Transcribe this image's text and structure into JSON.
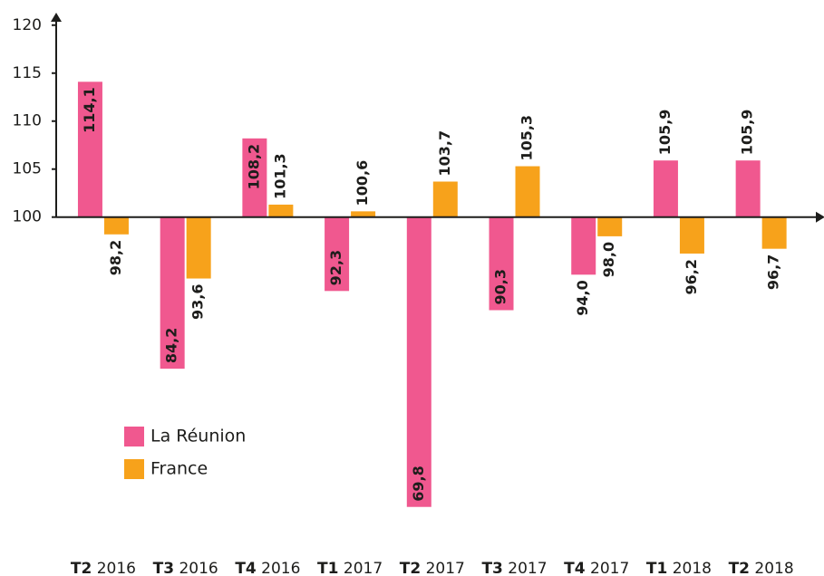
{
  "chart_data": {
    "type": "bar",
    "categories": [
      "T2 2016",
      "T3 2016",
      "T4 2016",
      "T1 2017",
      "T2 2017",
      "T3 2017",
      "T4 2017",
      "T1 2018",
      "T2 2018"
    ],
    "series": [
      {
        "name": "La Réunion",
        "color": "#f0588f",
        "values": [
          114.1,
          84.2,
          108.2,
          92.3,
          69.8,
          90.3,
          94.0,
          105.9,
          105.9
        ],
        "value_labels": [
          "114,1",
          "84,2",
          "108,2",
          "92,3",
          "69,8",
          "90,3",
          "94,0",
          "105,9",
          "105,9"
        ]
      },
      {
        "name": "France",
        "color": "#f7a21b",
        "values": [
          98.2,
          93.6,
          101.3,
          100.6,
          103.7,
          105.3,
          98.0,
          96.2,
          96.7
        ],
        "value_labels": [
          "98,2",
          "93,6",
          "101,3",
          "100,6",
          "103,7",
          "105,3",
          "98,0",
          "96,2",
          "96,7"
        ]
      }
    ],
    "ylim": [
      66,
      121.3
    ],
    "yticks": [
      100,
      105,
      110,
      115,
      120
    ],
    "baseline": 100
  }
}
